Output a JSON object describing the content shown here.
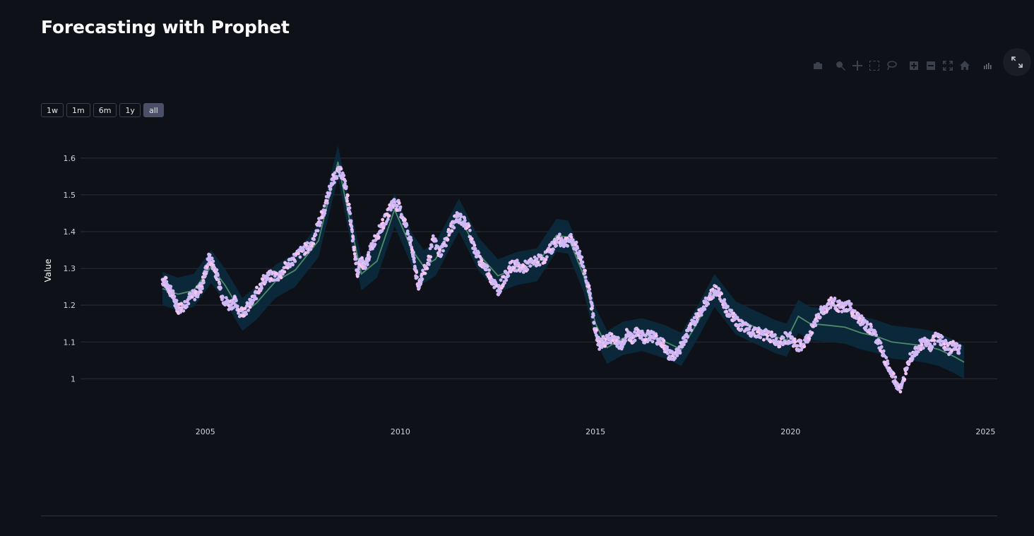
{
  "page": {
    "title": "Forecasting with Prophet"
  },
  "modebar": {
    "icons": [
      "camera-icon",
      "zoom-icon",
      "pan-icon",
      "box-select-icon",
      "lasso-icon",
      "zoom-in-icon",
      "zoom-out-icon",
      "autoscale-icon",
      "home-icon",
      "plotly-logo-icon"
    ]
  },
  "range_selector": {
    "buttons": [
      "1w",
      "1m",
      "6m",
      "1y",
      "all"
    ],
    "active": "all"
  },
  "colors": {
    "background": "#0e1117",
    "band": "#0b2a3b",
    "trend": "#4e8a68",
    "points": "#cfb8f5",
    "points_highlight": "#f7c6f0",
    "grid": "#2c2f38",
    "text": "#fafafa"
  },
  "chart_data": {
    "type": "scatter",
    "title": "",
    "xlabel": "",
    "ylabel": "Value",
    "x_ticks": [
      "2005",
      "2010",
      "2015",
      "2020",
      "2025"
    ],
    "y_ticks": [
      "1",
      "1.1",
      "1.2",
      "1.3",
      "1.4",
      "1.5",
      "1.6"
    ],
    "xlim": [
      2001.8,
      2025.3
    ],
    "ylim": [
      0.92,
      1.665
    ],
    "grid": true,
    "series": [
      {
        "kind": "markers",
        "points": [
          [
            2003.9,
            1.27
          ],
          [
            2004.0,
            1.26
          ],
          [
            2004.1,
            1.24
          ],
          [
            2004.2,
            1.22
          ],
          [
            2004.3,
            1.19
          ],
          [
            2004.45,
            1.2
          ],
          [
            2004.6,
            1.22
          ],
          [
            2004.75,
            1.23
          ],
          [
            2004.9,
            1.25
          ],
          [
            2005.0,
            1.29
          ],
          [
            2005.1,
            1.33
          ],
          [
            2005.2,
            1.31
          ],
          [
            2005.3,
            1.28
          ],
          [
            2005.45,
            1.22
          ],
          [
            2005.6,
            1.2
          ],
          [
            2005.75,
            1.21
          ],
          [
            2005.9,
            1.18
          ],
          [
            2006.05,
            1.19
          ],
          [
            2006.2,
            1.21
          ],
          [
            2006.35,
            1.24
          ],
          [
            2006.5,
            1.27
          ],
          [
            2006.7,
            1.28
          ],
          [
            2006.9,
            1.28
          ],
          [
            2007.1,
            1.31
          ],
          [
            2007.3,
            1.33
          ],
          [
            2007.5,
            1.35
          ],
          [
            2007.7,
            1.36
          ],
          [
            2007.9,
            1.42
          ],
          [
            2008.05,
            1.46
          ],
          [
            2008.2,
            1.52
          ],
          [
            2008.35,
            1.56
          ],
          [
            2008.5,
            1.56
          ],
          [
            2008.6,
            1.52
          ],
          [
            2008.7,
            1.45
          ],
          [
            2008.8,
            1.36
          ],
          [
            2008.9,
            1.29
          ],
          [
            2009.0,
            1.32
          ],
          [
            2009.1,
            1.3
          ],
          [
            2009.2,
            1.34
          ],
          [
            2009.35,
            1.38
          ],
          [
            2009.5,
            1.41
          ],
          [
            2009.65,
            1.44
          ],
          [
            2009.8,
            1.48
          ],
          [
            2009.95,
            1.47
          ],
          [
            2010.1,
            1.43
          ],
          [
            2010.25,
            1.38
          ],
          [
            2010.35,
            1.32
          ],
          [
            2010.45,
            1.25
          ],
          [
            2010.55,
            1.28
          ],
          [
            2010.7,
            1.31
          ],
          [
            2010.85,
            1.38
          ],
          [
            2011.0,
            1.34
          ],
          [
            2011.15,
            1.37
          ],
          [
            2011.3,
            1.41
          ],
          [
            2011.45,
            1.44
          ],
          [
            2011.6,
            1.43
          ],
          [
            2011.75,
            1.41
          ],
          [
            2011.9,
            1.35
          ],
          [
            2012.05,
            1.32
          ],
          [
            2012.2,
            1.3
          ],
          [
            2012.35,
            1.27
          ],
          [
            2012.5,
            1.24
          ],
          [
            2012.65,
            1.27
          ],
          [
            2012.8,
            1.3
          ],
          [
            2012.95,
            1.31
          ],
          [
            2013.1,
            1.3
          ],
          [
            2013.3,
            1.31
          ],
          [
            2013.5,
            1.32
          ],
          [
            2013.7,
            1.33
          ],
          [
            2013.9,
            1.36
          ],
          [
            2014.05,
            1.38
          ],
          [
            2014.2,
            1.37
          ],
          [
            2014.35,
            1.38
          ],
          [
            2014.5,
            1.36
          ],
          [
            2014.65,
            1.32
          ],
          [
            2014.8,
            1.26
          ],
          [
            2014.9,
            1.2
          ],
          [
            2015.0,
            1.13
          ],
          [
            2015.1,
            1.09
          ],
          [
            2015.2,
            1.1
          ],
          [
            2015.35,
            1.11
          ],
          [
            2015.5,
            1.11
          ],
          [
            2015.65,
            1.09
          ],
          [
            2015.8,
            1.12
          ],
          [
            2015.95,
            1.11
          ],
          [
            2016.1,
            1.13
          ],
          [
            2016.25,
            1.11
          ],
          [
            2016.4,
            1.12
          ],
          [
            2016.55,
            1.11
          ],
          [
            2016.7,
            1.1
          ],
          [
            2016.85,
            1.07
          ],
          [
            2017.0,
            1.06
          ],
          [
            2017.15,
            1.08
          ],
          [
            2017.3,
            1.11
          ],
          [
            2017.45,
            1.14
          ],
          [
            2017.6,
            1.17
          ],
          [
            2017.75,
            1.19
          ],
          [
            2017.9,
            1.22
          ],
          [
            2018.05,
            1.24
          ],
          [
            2018.2,
            1.23
          ],
          [
            2018.35,
            1.19
          ],
          [
            2018.5,
            1.17
          ],
          [
            2018.65,
            1.15
          ],
          [
            2018.8,
            1.14
          ],
          [
            2018.95,
            1.13
          ],
          [
            2019.1,
            1.13
          ],
          [
            2019.25,
            1.12
          ],
          [
            2019.4,
            1.12
          ],
          [
            2019.55,
            1.11
          ],
          [
            2019.7,
            1.1
          ],
          [
            2019.85,
            1.11
          ],
          [
            2020.0,
            1.11
          ],
          [
            2020.15,
            1.09
          ],
          [
            2020.3,
            1.09
          ],
          [
            2020.45,
            1.11
          ],
          [
            2020.6,
            1.15
          ],
          [
            2020.75,
            1.18
          ],
          [
            2020.9,
            1.19
          ],
          [
            2021.05,
            1.21
          ],
          [
            2021.2,
            1.2
          ],
          [
            2021.35,
            1.19
          ],
          [
            2021.5,
            1.2
          ],
          [
            2021.65,
            1.17
          ],
          [
            2021.8,
            1.16
          ],
          [
            2021.95,
            1.14
          ],
          [
            2022.1,
            1.13
          ],
          [
            2022.25,
            1.1
          ],
          [
            2022.4,
            1.06
          ],
          [
            2022.55,
            1.02
          ],
          [
            2022.7,
            0.99
          ],
          [
            2022.85,
            0.97
          ],
          [
            2023.0,
            1.05
          ],
          [
            2023.15,
            1.07
          ],
          [
            2023.3,
            1.09
          ],
          [
            2023.45,
            1.1
          ],
          [
            2023.6,
            1.09
          ],
          [
            2023.75,
            1.12
          ],
          [
            2023.9,
            1.1
          ],
          [
            2024.05,
            1.08
          ],
          [
            2024.2,
            1.09
          ],
          [
            2024.35,
            1.08
          ]
        ]
      },
      {
        "kind": "line",
        "points": [
          [
            2003.9,
            1.245
          ],
          [
            2004.3,
            1.23
          ],
          [
            2004.7,
            1.24
          ],
          [
            2005.15,
            1.305
          ],
          [
            2005.5,
            1.255
          ],
          [
            2005.95,
            1.175
          ],
          [
            2006.3,
            1.205
          ],
          [
            2006.8,
            1.265
          ],
          [
            2007.3,
            1.295
          ],
          [
            2007.9,
            1.375
          ],
          [
            2008.4,
            1.59
          ],
          [
            2008.7,
            1.43
          ],
          [
            2009.0,
            1.285
          ],
          [
            2009.4,
            1.32
          ],
          [
            2009.85,
            1.46
          ],
          [
            2010.3,
            1.35
          ],
          [
            2010.6,
            1.305
          ],
          [
            2010.9,
            1.325
          ],
          [
            2011.5,
            1.445
          ],
          [
            2012.0,
            1.34
          ],
          [
            2012.5,
            1.28
          ],
          [
            2013.0,
            1.3
          ],
          [
            2013.5,
            1.31
          ],
          [
            2014.0,
            1.39
          ],
          [
            2014.3,
            1.385
          ],
          [
            2014.7,
            1.28
          ],
          [
            2015.0,
            1.15
          ],
          [
            2015.3,
            1.085
          ],
          [
            2015.7,
            1.11
          ],
          [
            2016.2,
            1.12
          ],
          [
            2016.8,
            1.1
          ],
          [
            2017.2,
            1.08
          ],
          [
            2017.6,
            1.15
          ],
          [
            2018.05,
            1.24
          ],
          [
            2018.6,
            1.165
          ],
          [
            2019.1,
            1.14
          ],
          [
            2019.6,
            1.115
          ],
          [
            2019.9,
            1.105
          ],
          [
            2020.2,
            1.17
          ],
          [
            2020.5,
            1.15
          ],
          [
            2021.0,
            1.145
          ],
          [
            2021.4,
            1.14
          ],
          [
            2021.8,
            1.125
          ],
          [
            2022.2,
            1.115
          ],
          [
            2022.6,
            1.1
          ],
          [
            2023.0,
            1.095
          ],
          [
            2023.4,
            1.09
          ],
          [
            2023.8,
            1.08
          ],
          [
            2024.2,
            1.06
          ],
          [
            2024.45,
            1.045
          ]
        ]
      }
    ]
  }
}
